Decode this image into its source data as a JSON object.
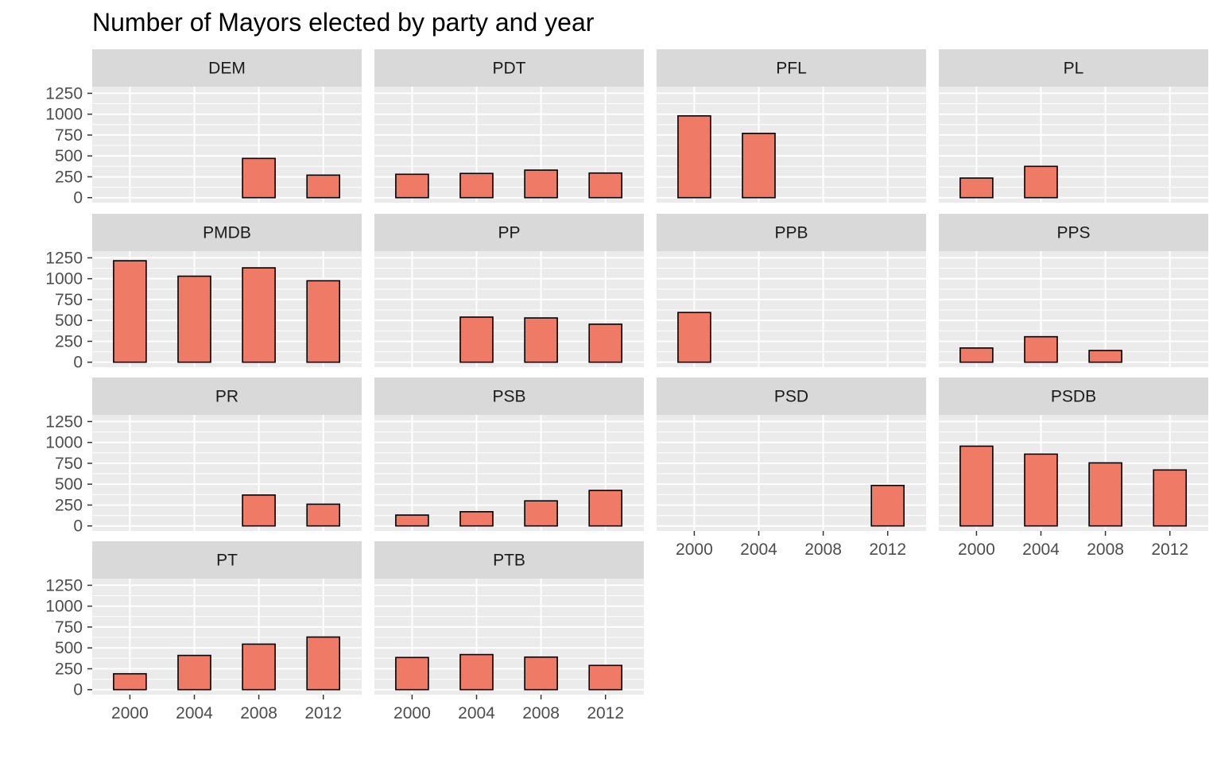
{
  "chart_data": {
    "type": "bar",
    "title": "Number of Mayors elected by party and year",
    "xlabel": "",
    "ylabel": "",
    "x": [
      "2000",
      "2004",
      "2008",
      "2012"
    ],
    "yticks": [
      0,
      250,
      500,
      750,
      1000,
      1250
    ],
    "ylim": [
      -60,
      1330
    ],
    "layout": "facet wrap, 4 columns",
    "grid": true,
    "colors": {
      "bar_fill": "#EF7B66",
      "bar_outline": "#000000",
      "panel_bg": "#EBEBEB",
      "strip_bg": "#D9D9D9",
      "grid": "#FFFFFF"
    },
    "panels": [
      {
        "name": "DEM",
        "values": [
          null,
          null,
          470,
          270
        ]
      },
      {
        "name": "PDT",
        "values": [
          280,
          290,
          330,
          295
        ]
      },
      {
        "name": "PFL",
        "values": [
          980,
          770,
          null,
          null
        ]
      },
      {
        "name": "PL",
        "values": [
          235,
          375,
          null,
          null
        ]
      },
      {
        "name": "PMDB",
        "values": [
          1215,
          1030,
          1130,
          975
        ]
      },
      {
        "name": "PP",
        "values": [
          null,
          540,
          530,
          455
        ]
      },
      {
        "name": "PPB",
        "values": [
          595,
          null,
          null,
          null
        ]
      },
      {
        "name": "PPS",
        "values": [
          170,
          305,
          140,
          null
        ]
      },
      {
        "name": "PR",
        "values": [
          null,
          null,
          370,
          260
        ]
      },
      {
        "name": "PSB",
        "values": [
          130,
          170,
          300,
          425
        ]
      },
      {
        "name": "PSD",
        "values": [
          null,
          null,
          null,
          485
        ]
      },
      {
        "name": "PSDB",
        "values": [
          955,
          860,
          755,
          670
        ]
      },
      {
        "name": "PT",
        "values": [
          190,
          410,
          545,
          630
        ]
      },
      {
        "name": "PTB",
        "values": [
          385,
          420,
          390,
          290
        ]
      }
    ]
  }
}
